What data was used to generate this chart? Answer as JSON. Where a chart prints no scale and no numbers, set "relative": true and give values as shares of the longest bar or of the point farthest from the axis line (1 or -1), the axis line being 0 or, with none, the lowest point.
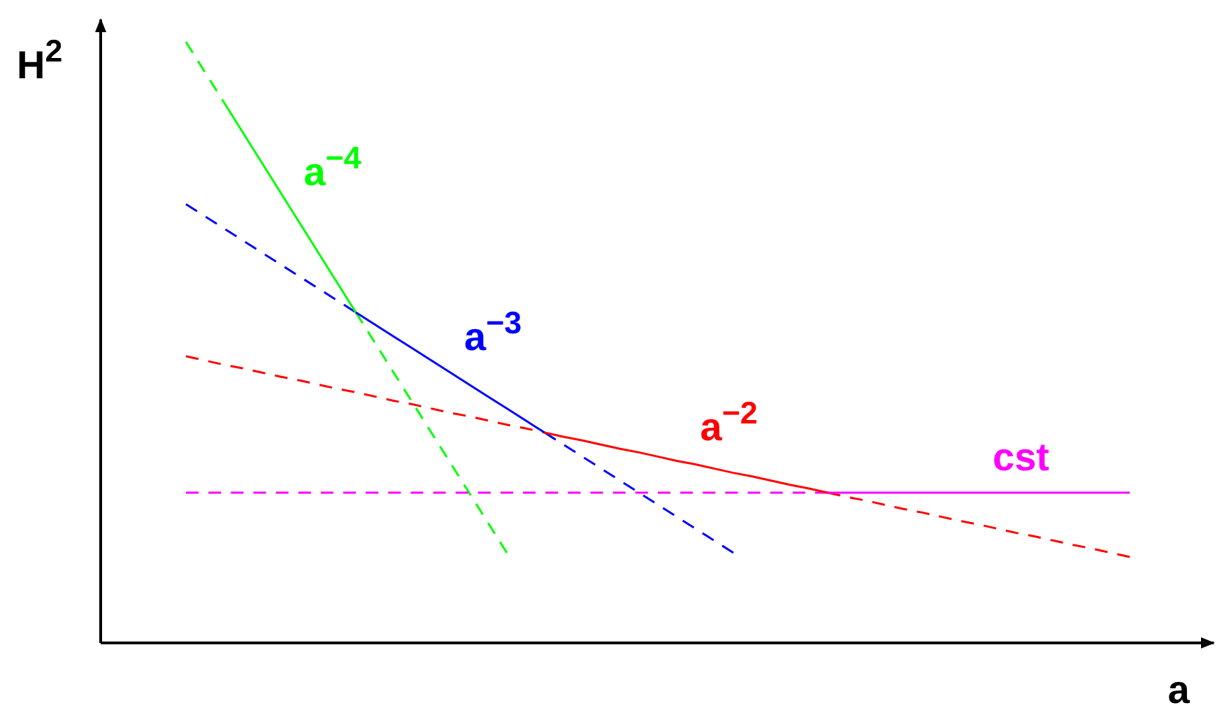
{
  "chart_data": {
    "type": "line",
    "relative": true,
    "xlabel": "a",
    "ylabel": "H$^{2}$",
    "marker": "none",
    "categories": [
      null,
      null,
      null,
      null,
      null,
      null,
      null,
      null,
      null,
      null,
      null,
      null,
      null,
      null,
      null,
      null,
      null,
      null,
      null,
      null,
      null,
      null,
      null,
      null,
      null,
      null,
      null,
      null,
      null,
      null,
      null,
      null,
      null,
      null,
      null,
      null,
      null,
      null,
      null,
      null,
      null,
      null,
      null,
      null,
      null,
      null,
      null,
      null,
      null,
      null,
      null
    ],
    "series": [
      {
        "color": "#00ff00",
        "line_style": "dashed",
        "values": [
          1.0,
          0.95,
          0.9,
          null,
          null,
          null,
          null,
          null,
          null,
          0.55,
          0.5,
          0.45,
          0.4,
          0.35,
          0.3,
          0.25,
          0.2,
          0.15,
          null,
          null,
          null,
          null,
          null,
          null,
          null,
          null,
          null,
          null,
          null,
          null,
          null,
          null,
          null,
          null,
          null,
          null,
          null,
          null,
          null,
          null,
          null,
          null,
          null,
          null,
          null,
          null,
          null,
          null,
          null,
          null,
          null
        ]
      },
      {
        "name": "a$^{−4}$",
        "color": "#00fe00",
        "line_style": "solid",
        "values": [
          null,
          null,
          0.9,
          0.85,
          0.8,
          0.75,
          0.7,
          0.65,
          0.6,
          0.55,
          null,
          null,
          null,
          null,
          null,
          null,
          null,
          null,
          null,
          null,
          null,
          null,
          null,
          null,
          null,
          null,
          null,
          null,
          null,
          null,
          null,
          null,
          null,
          null,
          null,
          null,
          null,
          null,
          null,
          null,
          null,
          null,
          null,
          null,
          null,
          null,
          null,
          null,
          null,
          null,
          null
        ]
      },
      {
        "color": "#0000ff",
        "line_style": "dashed",
        "values": [
          0.73,
          0.71,
          0.69,
          0.67,
          0.65,
          0.63,
          0.61,
          0.59,
          0.57,
          0.55,
          null,
          null,
          null,
          null,
          null,
          null,
          null,
          null,
          null,
          0.35,
          0.33,
          0.31,
          0.29,
          0.27,
          0.25,
          0.23,
          0.21,
          0.19,
          0.17,
          0.15,
          null,
          null,
          null,
          null,
          null,
          null,
          null,
          null,
          null,
          null,
          null,
          null,
          null,
          null,
          null,
          null,
          null,
          null,
          null,
          null,
          null
        ]
      },
      {
        "name": "a$^{−3}$",
        "color": "#0000fe",
        "line_style": "solid",
        "values": [
          null,
          null,
          null,
          null,
          null,
          null,
          null,
          null,
          null,
          0.55,
          0.53,
          0.51,
          0.49,
          0.47,
          0.45,
          0.43,
          0.41,
          0.39,
          0.37,
          0.35,
          null,
          null,
          null,
          null,
          null,
          null,
          null,
          null,
          null,
          null,
          null,
          null,
          null,
          null,
          null,
          null,
          null,
          null,
          null,
          null,
          null,
          null,
          null,
          null,
          null,
          null,
          null,
          null,
          null,
          null,
          null
        ]
      },
      {
        "color": "#ff0000",
        "line_style": "dashed",
        "values": [
          0.477,
          0.47,
          0.463,
          0.457,
          0.45,
          0.443,
          0.437,
          0.43,
          0.423,
          0.417,
          0.41,
          0.403,
          0.397,
          0.39,
          0.383,
          0.377,
          0.37,
          0.363,
          0.357,
          0.35,
          null,
          null,
          null,
          null,
          null,
          null,
          null,
          null,
          null,
          null,
          null,
          null,
          null,
          null,
          0.25,
          0.243,
          0.237,
          0.23,
          0.223,
          0.217,
          0.21,
          0.203,
          0.197,
          0.19,
          0.183,
          0.177,
          0.17,
          0.163,
          0.157,
          0.15,
          0.143
        ]
      },
      {
        "name": "a$^{−2}$",
        "color": "#fe0000",
        "line_style": "solid",
        "values": [
          null,
          null,
          null,
          null,
          null,
          null,
          null,
          null,
          null,
          null,
          null,
          null,
          null,
          null,
          null,
          null,
          null,
          null,
          null,
          0.35,
          0.343,
          0.337,
          0.33,
          0.323,
          0.317,
          0.31,
          0.303,
          0.297,
          0.29,
          0.283,
          0.277,
          0.27,
          0.263,
          0.257,
          0.25,
          null,
          null,
          null,
          null,
          null,
          null,
          null,
          null,
          null,
          null,
          null,
          null,
          null,
          null,
          null,
          null
        ]
      },
      {
        "color": "#ff00ff",
        "line_style": "dashed",
        "values": [
          0.25,
          0.25,
          0.25,
          0.25,
          0.25,
          0.25,
          0.25,
          0.25,
          0.25,
          0.25,
          0.25,
          0.25,
          0.25,
          0.25,
          0.25,
          0.25,
          0.25,
          0.25,
          0.25,
          0.25,
          0.25,
          0.25,
          0.25,
          0.25,
          0.25,
          0.25,
          0.25,
          0.25,
          0.25,
          0.25,
          0.25,
          0.25,
          0.25,
          0.25,
          0.25,
          null,
          null,
          null,
          null,
          null,
          null,
          null,
          null,
          null,
          null,
          null,
          null,
          null,
          null,
          null,
          null
        ]
      },
      {
        "name": "cst",
        "color": "#ff00ff",
        "line_style": "solid",
        "values": [
          null,
          null,
          null,
          null,
          null,
          null,
          null,
          null,
          null,
          null,
          null,
          null,
          null,
          null,
          null,
          null,
          null,
          null,
          null,
          null,
          null,
          null,
          null,
          null,
          null,
          null,
          null,
          null,
          null,
          null,
          null,
          null,
          null,
          null,
          0.25,
          0.25,
          0.25,
          0.25,
          0.25,
          0.25,
          0.25,
          0.25,
          0.25,
          0.25,
          0.25,
          0.25,
          0.25,
          0.25,
          0.25,
          0.25,
          0.25
        ]
      }
    ]
  }
}
